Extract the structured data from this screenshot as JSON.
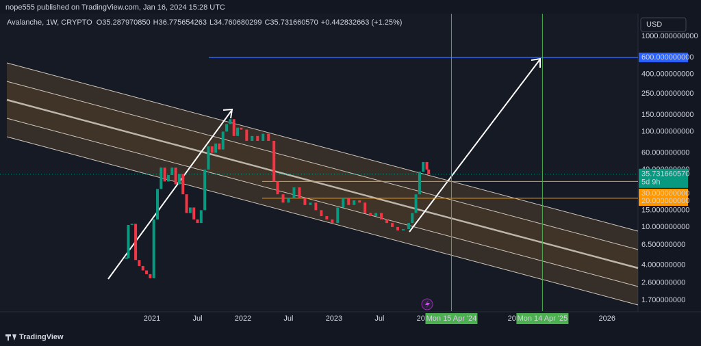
{
  "header": {
    "publisher": "nope555 published on TradingView.com, Jan 16, 2024 15:28 UTC"
  },
  "legend": {
    "symbol": "Avalanche, 1W, CRYPTO",
    "ohlc": [
      {
        "key": "O",
        "value": "35.287970850"
      },
      {
        "key": "H",
        "value": "36.775654263"
      },
      {
        "key": "L",
        "value": "34.760680299"
      },
      {
        "key": "C",
        "value": "35.731660570"
      }
    ],
    "change": "+0.442832663 (+1.25%)"
  },
  "currency": "USD",
  "footer": {
    "brand": "TradingView"
  },
  "chart_data": {
    "type": "candlestick",
    "log_scale": true,
    "up_color": "#089981",
    "down_color": "#f23645",
    "x": [
      2020.72,
      2020.74,
      2020.78,
      2020.82,
      2020.86,
      2020.9,
      2020.94,
      2020.98,
      2021.02,
      2021.06,
      2021.1,
      2021.14,
      2021.18,
      2021.22,
      2021.26,
      2021.3,
      2021.34,
      2021.38,
      2021.42,
      2021.46,
      2021.5,
      2021.54,
      2021.58,
      2021.62,
      2021.66,
      2021.7,
      2021.74,
      2021.78,
      2021.82,
      2021.86,
      2021.9,
      2021.94,
      2021.98,
      2022.04,
      2022.1,
      2022.16,
      2022.22,
      2022.28,
      2022.34,
      2022.38,
      2022.44,
      2022.5,
      2022.56,
      2022.62,
      2022.68,
      2022.74,
      2022.8,
      2022.86,
      2022.92,
      2022.98,
      2023.04,
      2023.1,
      2023.16,
      2023.22,
      2023.28,
      2023.34,
      2023.4,
      2023.46,
      2023.52,
      2023.58,
      2023.64,
      2023.7,
      2023.76,
      2023.82,
      2023.86,
      2023.9,
      2023.94,
      2023.98,
      2024.02,
      2024.04
    ],
    "close": [
      4.7,
      10.5,
      10.8,
      4.5,
      3.9,
      3.5,
      3.2,
      2.9,
      12,
      25,
      42,
      30,
      35,
      42,
      28,
      36,
      22,
      14,
      16,
      12,
      11,
      15,
      40,
      70,
      60,
      75,
      65,
      100,
      120,
      135,
      90,
      110,
      105,
      80,
      90,
      80,
      95,
      80,
      30,
      22,
      18,
      20,
      26,
      20,
      17,
      18,
      15,
      13,
      12,
      11,
      16,
      20,
      17,
      19,
      18,
      14,
      13,
      14,
      12,
      11,
      10,
      9.2,
      9.5,
      11,
      14,
      22,
      38,
      48,
      40,
      35.73166057
    ],
    "xlim": [
      2019.33,
      2026.34
    ],
    "ylim": [
      1.31,
      2400
    ],
    "xticks": [
      2021,
      {
        "value": 2021.5,
        "label": "Jul"
      },
      2022,
      {
        "value": 2022.5,
        "label": "Jul"
      },
      2023,
      {
        "value": 2023.5,
        "label": "Jul"
      },
      2024,
      2025,
      2026
    ],
    "yticks": [
      {
        "value": 1000,
        "label": "1000.000000000"
      },
      {
        "value": 400,
        "label": "400.000000000"
      },
      {
        "value": 250,
        "label": "250.000000000"
      },
      {
        "value": 150,
        "label": "150.000000000"
      },
      {
        "value": 100,
        "label": "100.000000000"
      },
      {
        "value": 60,
        "label": "60.000000000"
      },
      {
        "value": 40,
        "label": "40.000000000"
      },
      {
        "value": 15,
        "label": "15.000000000"
      },
      {
        "value": 10,
        "label": "10.000000000"
      },
      {
        "value": 6.5,
        "label": "6.500000000"
      },
      {
        "value": 4,
        "label": "4.000000000"
      },
      {
        "value": 2.6,
        "label": "2.600000000"
      },
      {
        "value": 1.7,
        "label": "1.700000000"
      }
    ],
    "levels": [
      {
        "value": 600,
        "label": "600.000000000",
        "color": "#2962ff"
      },
      {
        "value": 30,
        "label": "30.000000000",
        "color": "#ff9800"
      },
      {
        "value": 20,
        "label": "20.000000000",
        "color": "#ff9800"
      }
    ],
    "last": {
      "value": 35.73166057,
      "label": "35.731660570",
      "countdown": "5d 9h",
      "color": "#089981"
    },
    "markers": [
      {
        "value": 2024.29,
        "label": "Mon 15 Apr '24",
        "color": "#4caf50"
      },
      {
        "value": 2025.29,
        "label": "Mon 14 Apr '25",
        "color": "#4caf50"
      }
    ]
  }
}
